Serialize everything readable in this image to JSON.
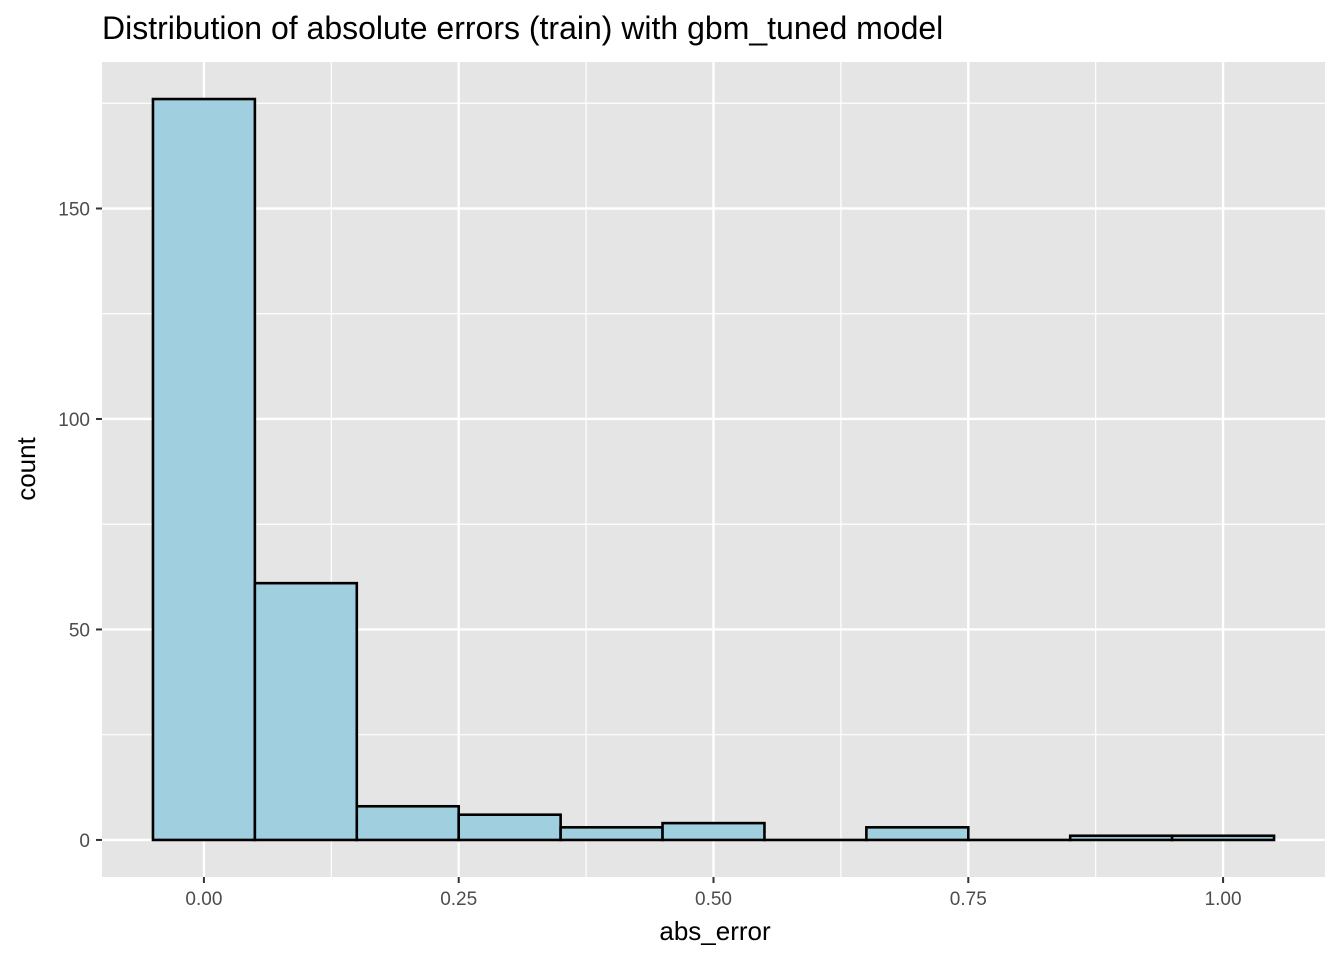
{
  "chart_data": {
    "type": "bar",
    "title": "Distribution of absolute errors (train) with gbm_tuned model",
    "xlabel": "abs_error",
    "ylabel": "count",
    "bins": [
      {
        "x0": -0.05,
        "x1": 0.05,
        "count": 176
      },
      {
        "x0": 0.05,
        "x1": 0.15,
        "count": 61
      },
      {
        "x0": 0.15,
        "x1": 0.25,
        "count": 8
      },
      {
        "x0": 0.25,
        "x1": 0.35,
        "count": 6
      },
      {
        "x0": 0.35,
        "x1": 0.45,
        "count": 3
      },
      {
        "x0": 0.45,
        "x1": 0.55,
        "count": 4
      },
      {
        "x0": 0.55,
        "x1": 0.65,
        "count": 0
      },
      {
        "x0": 0.65,
        "x1": 0.75,
        "count": 3
      },
      {
        "x0": 0.75,
        "x1": 0.85,
        "count": 0
      },
      {
        "x0": 0.85,
        "x1": 0.95,
        "count": 1
      },
      {
        "x0": 0.95,
        "x1": 1.05,
        "count": 1
      }
    ],
    "xlim": [
      -0.1,
      1.1
    ],
    "ylim": [
      -8.8,
      184.8
    ],
    "x_ticks": [
      0,
      0.25,
      0.5,
      0.75,
      1.0
    ],
    "x_tick_labels": [
      "0.00",
      "0.25",
      "0.50",
      "0.75",
      "1.00"
    ],
    "y_ticks": [
      0,
      50,
      100,
      150
    ],
    "y_tick_labels": [
      "0",
      "50",
      "100",
      "150"
    ],
    "grid": true,
    "colors": {
      "panel_background": "#e5e5e5",
      "grid": "#ffffff",
      "bar_fill": "#a0cfe0",
      "bar_stroke": "#000000"
    }
  }
}
